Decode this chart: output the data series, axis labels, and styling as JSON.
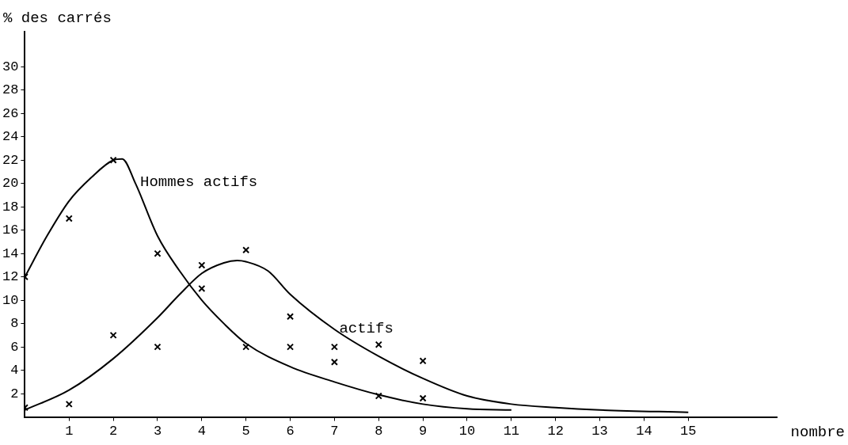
{
  "chart_data": {
    "type": "scatter",
    "xlabel": "nombre",
    "ylabel": "% des carrés",
    "xlim": [
      0,
      17
    ],
    "ylim": [
      0,
      33
    ],
    "xticks": [
      1,
      2,
      3,
      4,
      5,
      6,
      7,
      8,
      9,
      10,
      11,
      12,
      13,
      14,
      15
    ],
    "yticks": [
      2,
      4,
      6,
      8,
      10,
      12,
      14,
      16,
      18,
      20,
      22,
      24,
      26,
      28,
      30
    ],
    "grid": false,
    "legend": false,
    "series": [
      {
        "type": "scatter",
        "color": "#000000",
        "marker": "cross",
        "x": [
          0,
          1,
          2,
          3,
          4,
          5,
          6,
          7,
          8,
          9
        ],
        "values": [
          12,
          17,
          22,
          14,
          11,
          6,
          6,
          4.7,
          1.8,
          1.6
        ]
      },
      {
        "type": "scatter",
        "color": "#000000",
        "marker": "cross",
        "x": [
          0,
          1,
          2,
          3,
          4,
          5,
          6,
          7,
          8,
          9
        ],
        "values": [
          0.8,
          1.1,
          7,
          6,
          13,
          14.3,
          8.6,
          6,
          6.2,
          4.8
        ]
      },
      {
        "type": "line",
        "color": "#000000",
        "marker": "none",
        "line_style": "solid",
        "x": [
          0,
          0.5,
          1,
          1.5,
          2,
          2.2,
          2.5,
          3,
          3.5,
          4,
          4.5,
          5,
          6,
          7,
          8,
          9,
          10,
          11
        ],
        "values": [
          12,
          15.5,
          18.5,
          20.5,
          22,
          22.1,
          20,
          15.5,
          12.5,
          10,
          8,
          6.3,
          4.3,
          3,
          1.9,
          1.1,
          0.7,
          0.6
        ]
      },
      {
        "type": "line",
        "color": "#000000",
        "marker": "none",
        "line_style": "solid",
        "x": [
          0,
          1,
          2,
          3,
          3.5,
          4,
          4.5,
          4.8,
          5,
          5.5,
          6,
          7,
          8,
          9,
          10,
          11,
          12,
          13,
          15
        ],
        "values": [
          0.6,
          2.3,
          5,
          8.5,
          10.5,
          12.3,
          13.2,
          13.4,
          13.3,
          12.5,
          10.5,
          7.5,
          5.2,
          3.3,
          1.8,
          1.1,
          0.8,
          0.6,
          0.4
        ]
      }
    ],
    "annotations": [
      {
        "text": "Hommes actifs",
        "x": 2.5,
        "y": 20
      },
      {
        "text": "actifs",
        "x": 7,
        "y": 7.5
      }
    ]
  }
}
